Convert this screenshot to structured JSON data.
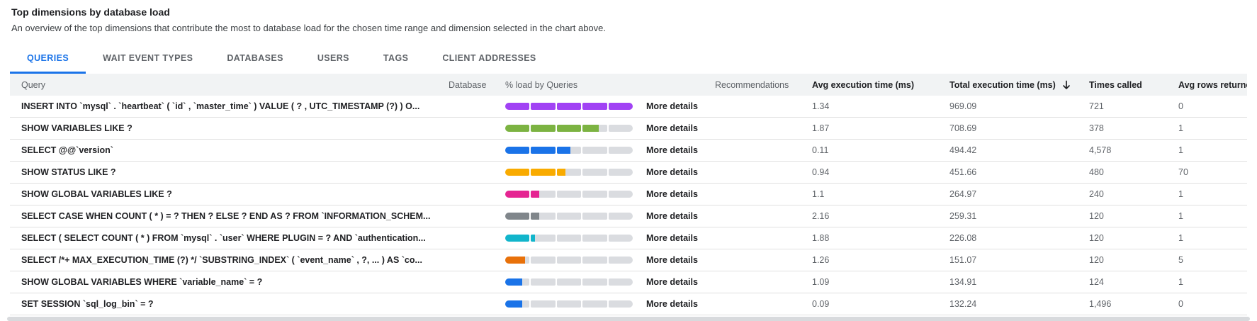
{
  "header": {
    "title": "Top dimensions by database load",
    "subtitle": "An overview of the top dimensions that contribute the most to database load for the chosen time range and dimension selected in the chart above."
  },
  "tabs": [
    {
      "label": "QUERIES",
      "active": true
    },
    {
      "label": "WAIT EVENT TYPES",
      "active": false
    },
    {
      "label": "DATABASES",
      "active": false
    },
    {
      "label": "USERS",
      "active": false
    },
    {
      "label": "TAGS",
      "active": false
    },
    {
      "label": "CLIENT ADDRESSES",
      "active": false
    }
  ],
  "table": {
    "columns": {
      "query": {
        "label": "Query"
      },
      "database": {
        "label": "Database"
      },
      "load": {
        "label": "% load by Queries"
      },
      "recommendations": {
        "label": "Recommendations"
      },
      "avg_ms": {
        "label": "Avg execution time (ms)"
      },
      "total_ms": {
        "label": "Total execution time (ms)",
        "sort": "descending"
      },
      "times_called": {
        "label": "Times called"
      },
      "avg_rows": {
        "label": "Avg rows returned"
      }
    },
    "more_details_label": "More details",
    "rows": [
      {
        "query": "INSERT INTO `mysql` . `heartbeat` ( `id` , `master_time` ) VALUE ( ? , UTC_TIMESTAMP (?) ) O...",
        "database": "",
        "load_pct": 100,
        "color": "#a142f4",
        "avg_ms": "1.34",
        "total_ms": "969.09",
        "times_called": "721",
        "avg_rows": "0"
      },
      {
        "query": "SHOW VARIABLES LIKE ?",
        "database": "",
        "load_pct": 73,
        "color": "#7cb342",
        "avg_ms": "1.87",
        "total_ms": "708.69",
        "times_called": "378",
        "avg_rows": "1"
      },
      {
        "query": "SELECT @@`version`",
        "database": "",
        "load_pct": 51,
        "color": "#1a73e8",
        "avg_ms": "0.11",
        "total_ms": "494.42",
        "times_called": "4,578",
        "avg_rows": "1"
      },
      {
        "query": "SHOW STATUS LIKE ?",
        "database": "",
        "load_pct": 47,
        "color": "#f9ab00",
        "avg_ms": "0.94",
        "total_ms": "451.66",
        "times_called": "480",
        "avg_rows": "70"
      },
      {
        "query": "SHOW GLOBAL VARIABLES LIKE ?",
        "database": "",
        "load_pct": 27,
        "color": "#e52592",
        "avg_ms": "1.1",
        "total_ms": "264.97",
        "times_called": "240",
        "avg_rows": "1"
      },
      {
        "query": "SELECT CASE WHEN COUNT ( * ) = ? THEN ? ELSE ? END AS ? FROM `INFORMATION_SCHEM...",
        "database": "",
        "load_pct": 27,
        "color": "#80868b",
        "avg_ms": "2.16",
        "total_ms": "259.31",
        "times_called": "120",
        "avg_rows": "1"
      },
      {
        "query": "SELECT ( SELECT COUNT ( * ) FROM `mysql` . `user` WHERE PLUGIN = ? AND `authentication...",
        "database": "",
        "load_pct": 23,
        "color": "#12b5cb",
        "avg_ms": "1.88",
        "total_ms": "226.08",
        "times_called": "120",
        "avg_rows": "1"
      },
      {
        "query": "SELECT /*+ MAX_EXECUTION_TIME (?) */ `SUBSTRING_INDEX` ( `event_name` , ?, ... ) AS `co...",
        "database": "",
        "load_pct": 16,
        "color": "#e8710a",
        "avg_ms": "1.26",
        "total_ms": "151.07",
        "times_called": "120",
        "avg_rows": "5"
      },
      {
        "query": "SHOW GLOBAL VARIABLES WHERE `variable_name` = ?",
        "database": "",
        "load_pct": 14,
        "color": "#1a73e8",
        "avg_ms": "1.09",
        "total_ms": "134.91",
        "times_called": "124",
        "avg_rows": "1"
      },
      {
        "query": "SET SESSION `sql_log_bin` = ?",
        "database": "",
        "load_pct": 14,
        "color": "#1a73e8",
        "avg_ms": "0.09",
        "total_ms": "132.24",
        "times_called": "1,496",
        "avg_rows": "0"
      }
    ]
  },
  "colors": {
    "accent": "#1a73e8",
    "bar_track": "#dadce0",
    "header_bg": "#f1f3f4",
    "muted_text": "#5f6368"
  }
}
